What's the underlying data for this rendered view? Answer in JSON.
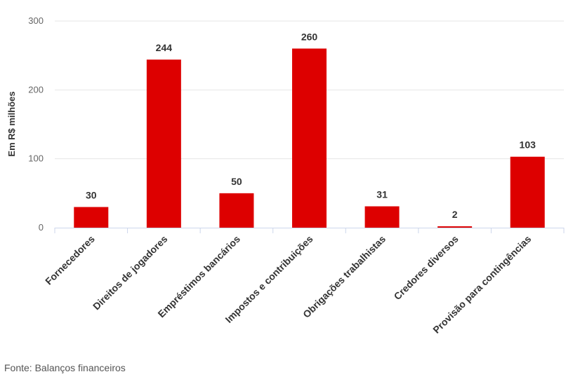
{
  "chart_data": {
    "type": "bar",
    "categories": [
      "Fornecedores",
      "Direitos de jogadores",
      "Empréstimos bancários",
      "Impostos e contribuições",
      "Obrigações trabalhistas",
      "Credores diversos",
      "Provisão para contingências"
    ],
    "values": [
      30,
      244,
      50,
      260,
      31,
      2,
      103
    ],
    "data_labels": [
      "30",
      "244",
      "50",
      "260",
      "31",
      "2",
      "103"
    ],
    "ylabel": "Em R$ milhões",
    "ylim": [
      0,
      300
    ],
    "yticks": [
      "0",
      "100",
      "200",
      "300"
    ],
    "grid": true,
    "bar_color": "#dd0000",
    "legend": "none"
  },
  "source": "Fonte: Balanços financeiros"
}
